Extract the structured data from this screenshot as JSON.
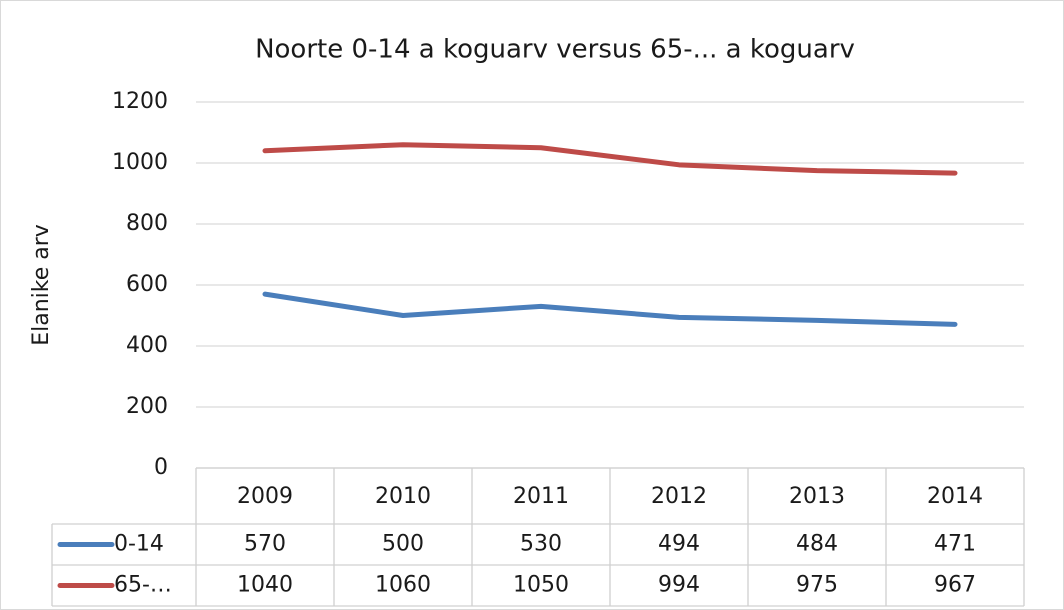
{
  "chart_data": {
    "type": "line",
    "title": "Noorte 0-14 a koguarv versus 65-... a koguarv",
    "y_label": "Elanike arv",
    "categories": [
      "2009",
      "2010",
      "2011",
      "2012",
      "2013",
      "2014"
    ],
    "series": [
      {
        "name": "0-14",
        "color": "#4a7ebb",
        "values": [
          570,
          500,
          530,
          494,
          484,
          471
        ]
      },
      {
        "name": "65-…",
        "color": "#be4b48",
        "values": [
          1040,
          1060,
          1050,
          994,
          975,
          967
        ]
      }
    ],
    "ylim": [
      0,
      1200
    ],
    "yticks": [
      0,
      200,
      400,
      600,
      800,
      1000,
      1200
    ],
    "grid": true,
    "data_table": true
  }
}
